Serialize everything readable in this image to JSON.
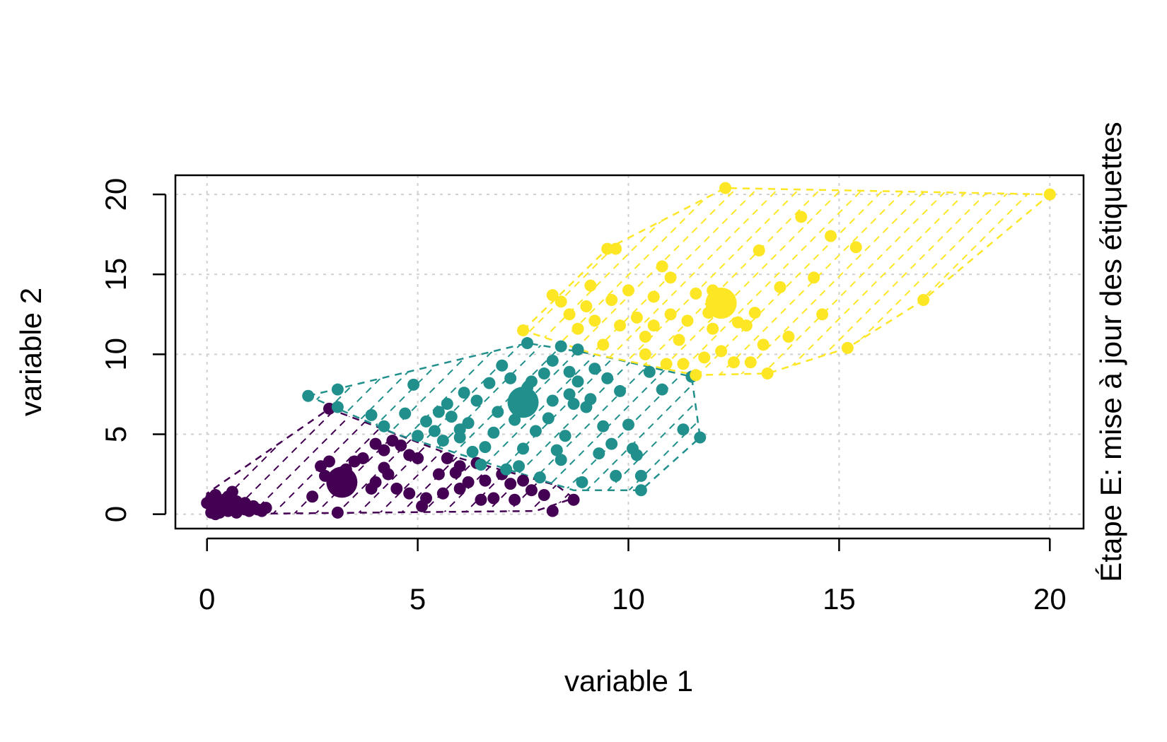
{
  "chart_data": {
    "type": "scatter",
    "title": "",
    "side_label": "Étape E: mise à jour des étiquettes",
    "xlabel": "variable 1",
    "ylabel": "variable 2",
    "xlim": [
      -0.75,
      20.8
    ],
    "ylim": [
      -0.9,
      21.2
    ],
    "x_ticks": [
      0,
      5,
      10,
      15,
      20
    ],
    "y_ticks": [
      0,
      5,
      10,
      15,
      20
    ],
    "x_tick_labels": [
      "0",
      "5",
      "10",
      "15",
      "20"
    ],
    "y_tick_labels": [
      "0",
      "5",
      "10",
      "15",
      "20"
    ],
    "grid": true,
    "series": [
      {
        "color": "#440154",
        "centroid": [
          3.2,
          2.0
        ],
        "hull": [
          [
            0,
            0
          ],
          [
            7.8,
            0.2
          ],
          [
            8.7,
            1.0
          ],
          [
            8.3,
            1.8
          ],
          [
            6.0,
            3.5
          ],
          [
            4.5,
            5.0
          ],
          [
            2.9,
            6.6
          ],
          [
            0,
            1.3
          ]
        ],
        "points": [
          [
            0.1,
            0.1
          ],
          [
            0.2,
            0.3
          ],
          [
            0.3,
            0.6
          ],
          [
            0.1,
            1.0
          ],
          [
            0.2,
            1.2
          ],
          [
            0.4,
            0.9
          ],
          [
            0.5,
            0.2
          ],
          [
            0.6,
            0.5
          ],
          [
            0.7,
            0.1
          ],
          [
            0.8,
            0.4
          ],
          [
            0.9,
            0.7
          ],
          [
            1.0,
            0.2
          ],
          [
            1.1,
            0.5
          ],
          [
            1.2,
            0.3
          ],
          [
            1.4,
            0.4
          ],
          [
            0.3,
            0.1
          ],
          [
            0.6,
            1.4
          ],
          [
            0.9,
            0.3
          ],
          [
            0.0,
            0.7
          ],
          [
            0.4,
            0.3
          ],
          [
            0.7,
            0.8
          ],
          [
            1.3,
            0.2
          ],
          [
            0.5,
            1.1
          ],
          [
            0.2,
            0.0
          ],
          [
            2.5,
            1.1
          ],
          [
            2.8,
            2.4
          ],
          [
            2.9,
            3.3
          ],
          [
            3.1,
            0.1
          ],
          [
            2.7,
            3.0
          ],
          [
            3.5,
            3.3
          ],
          [
            3.7,
            3.5
          ],
          [
            4.0,
            4.4
          ],
          [
            4.2,
            4.0
          ],
          [
            4.4,
            4.6
          ],
          [
            4.3,
            2.5
          ],
          [
            4.6,
            4.3
          ],
          [
            4.8,
            3.7
          ],
          [
            5.0,
            3.5
          ],
          [
            4.5,
            1.6
          ],
          [
            4.8,
            1.3
          ],
          [
            5.2,
            1.0
          ],
          [
            5.6,
            1.3
          ],
          [
            5.7,
            3.5
          ],
          [
            6.0,
            3.0
          ],
          [
            6.2,
            2.0
          ],
          [
            6.4,
            3.2
          ],
          [
            6.6,
            2.1
          ],
          [
            6.8,
            1.0
          ],
          [
            7.0,
            2.5
          ],
          [
            7.2,
            1.9
          ],
          [
            7.5,
            2.1
          ],
          [
            7.7,
            1.5
          ],
          [
            8.0,
            1.2
          ],
          [
            8.2,
            0.2
          ],
          [
            8.7,
            0.9
          ],
          [
            4.0,
            2.0
          ],
          [
            5.5,
            2.5
          ],
          [
            5.9,
            2.6
          ],
          [
            3.3,
            2.8
          ],
          [
            4.2,
            2.9
          ],
          [
            5.1,
            0.5
          ],
          [
            6.0,
            1.6
          ],
          [
            6.5,
            0.9
          ],
          [
            7.3,
            0.9
          ],
          [
            2.9,
            6.6
          ],
          [
            3.9,
            1.6
          ]
        ]
      },
      {
        "color": "#21908C",
        "centroid": [
          7.5,
          7.0
        ],
        "hull": [
          [
            2.4,
            7.4
          ],
          [
            7.6,
            10.7
          ],
          [
            9.2,
            10.0
          ],
          [
            11.5,
            8.6
          ],
          [
            11.7,
            4.8
          ],
          [
            10.3,
            1.5
          ],
          [
            8.7,
            1.5
          ],
          [
            4.5,
            5.0
          ]
        ],
        "points": [
          [
            2.4,
            7.4
          ],
          [
            3.1,
            7.8
          ],
          [
            3.1,
            6.7
          ],
          [
            3.9,
            6.2
          ],
          [
            4.2,
            5.5
          ],
          [
            4.7,
            6.3
          ],
          [
            4.9,
            8.1
          ],
          [
            5.2,
            5.8
          ],
          [
            5.4,
            5.2
          ],
          [
            5.6,
            4.6
          ],
          [
            5.8,
            6.1
          ],
          [
            6.0,
            4.8
          ],
          [
            6.2,
            5.7
          ],
          [
            6.4,
            7.1
          ],
          [
            6.6,
            4.2
          ],
          [
            6.8,
            5.1
          ],
          [
            7.0,
            9.3
          ],
          [
            7.2,
            8.5
          ],
          [
            7.4,
            6.6
          ],
          [
            7.6,
            7.9
          ],
          [
            7.8,
            5.2
          ],
          [
            8.0,
            8.8
          ],
          [
            8.2,
            9.6
          ],
          [
            8.4,
            10.5
          ],
          [
            8.6,
            7.5
          ],
          [
            8.8,
            8.3
          ],
          [
            9.0,
            6.7
          ],
          [
            9.2,
            9.1
          ],
          [
            9.4,
            5.5
          ],
          [
            9.6,
            4.4
          ],
          [
            9.8,
            7.7
          ],
          [
            10.0,
            5.6
          ],
          [
            10.2,
            3.7
          ],
          [
            10.3,
            2.4
          ],
          [
            10.3,
            1.5
          ],
          [
            10.5,
            8.9
          ],
          [
            10.8,
            7.8
          ],
          [
            11.3,
            5.3
          ],
          [
            11.7,
            4.8
          ],
          [
            11.5,
            8.6
          ],
          [
            6.5,
            3.1
          ],
          [
            7.1,
            2.8
          ],
          [
            7.9,
            2.3
          ],
          [
            8.4,
            3.4
          ],
          [
            8.9,
            2.0
          ],
          [
            9.3,
            3.8
          ],
          [
            9.7,
            2.4
          ],
          [
            5.7,
            6.9
          ],
          [
            6.1,
            7.6
          ],
          [
            6.9,
            6.4
          ],
          [
            7.3,
            5.9
          ],
          [
            8.1,
            6.0
          ],
          [
            8.5,
            4.9
          ],
          [
            8.7,
            6.9
          ],
          [
            9.1,
            7.2
          ],
          [
            6.3,
            3.9
          ],
          [
            7.5,
            4.1
          ],
          [
            8.3,
            4.0
          ],
          [
            5.0,
            4.9
          ],
          [
            7.6,
            10.7
          ],
          [
            8.8,
            10.3
          ],
          [
            9.5,
            8.5
          ],
          [
            10.1,
            4.1
          ],
          [
            6.7,
            8.2
          ],
          [
            7.7,
            8.3
          ],
          [
            8.6,
            8.9
          ],
          [
            8.2,
            7.1
          ],
          [
            7.4,
            3.0
          ],
          [
            6.0,
            5.3
          ],
          [
            5.5,
            6.4
          ]
        ]
      },
      {
        "color": "#FDE725",
        "centroid": [
          12.2,
          13.2
        ],
        "hull": [
          [
            7.5,
            11.5
          ],
          [
            9.5,
            16.6
          ],
          [
            12.3,
            20.4
          ],
          [
            20.0,
            20.0
          ],
          [
            17.0,
            13.4
          ],
          [
            15.2,
            10.4
          ],
          [
            13.3,
            8.8
          ],
          [
            11.6,
            8.7
          ],
          [
            9.2,
            10.0
          ]
        ],
        "points": [
          [
            7.5,
            11.5
          ],
          [
            8.2,
            13.7
          ],
          [
            8.4,
            13.3
          ],
          [
            8.6,
            12.5
          ],
          [
            8.8,
            11.6
          ],
          [
            9.0,
            13.0
          ],
          [
            9.2,
            12.1
          ],
          [
            9.4,
            10.6
          ],
          [
            9.5,
            16.6
          ],
          [
            9.6,
            13.4
          ],
          [
            9.8,
            11.8
          ],
          [
            10.0,
            14.0
          ],
          [
            10.2,
            12.3
          ],
          [
            10.4,
            11.1
          ],
          [
            10.6,
            13.6
          ],
          [
            10.8,
            15.5
          ],
          [
            11.0,
            12.5
          ],
          [
            11.2,
            10.9
          ],
          [
            11.4,
            12.1
          ],
          [
            11.6,
            8.7
          ],
          [
            11.8,
            9.8
          ],
          [
            12.0,
            11.6
          ],
          [
            12.2,
            10.2
          ],
          [
            12.3,
            20.4
          ],
          [
            12.5,
            9.5
          ],
          [
            12.8,
            11.8
          ],
          [
            13.1,
            16.5
          ],
          [
            13.3,
            8.8
          ],
          [
            13.6,
            14.2
          ],
          [
            13.8,
            11.1
          ],
          [
            14.1,
            18.6
          ],
          [
            14.4,
            14.8
          ],
          [
            14.6,
            12.5
          ],
          [
            14.8,
            17.4
          ],
          [
            15.2,
            10.4
          ],
          [
            15.4,
            16.7
          ],
          [
            17.0,
            13.4
          ],
          [
            20.0,
            20.0
          ],
          [
            11.0,
            14.8
          ],
          [
            11.6,
            13.8
          ],
          [
            12.6,
            12.0
          ],
          [
            13.0,
            12.6
          ],
          [
            13.2,
            10.6
          ],
          [
            10.4,
            10.0
          ],
          [
            10.9,
            9.4
          ],
          [
            11.3,
            9.4
          ],
          [
            9.1,
            14.3
          ],
          [
            9.7,
            16.6
          ],
          [
            12.0,
            14.0
          ],
          [
            10.6,
            11.8
          ],
          [
            11.9,
            12.6
          ],
          [
            12.9,
            9.5
          ]
        ]
      }
    ]
  }
}
